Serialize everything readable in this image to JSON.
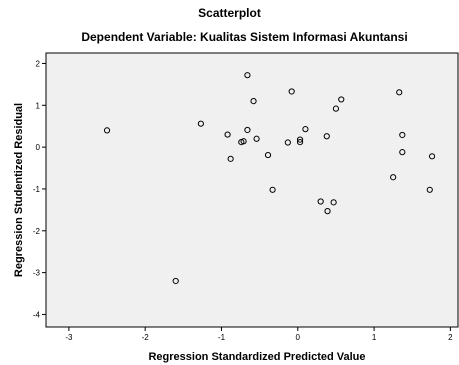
{
  "chart_data": {
    "type": "scatter",
    "title": "Scatterplot",
    "subtitle": "Dependent Variable: Kualitas Sistem Informasi Akuntansi",
    "xlabel": "Regression Standardized Predicted Value",
    "ylabel": "Regression Studentized Residual",
    "xlim": [
      -3.3,
      2.1
    ],
    "ylim": [
      -4.3,
      2.25
    ],
    "xticks": [
      -3,
      -2,
      -1,
      0,
      1,
      2
    ],
    "yticks": [
      2,
      1,
      0,
      -1,
      -2,
      -3,
      -4
    ],
    "grid": false,
    "plot_background": "#f0f0f0",
    "marker_color": "#000000",
    "points": [
      {
        "x": -2.5,
        "y": 0.4
      },
      {
        "x": -1.6,
        "y": -3.2
      },
      {
        "x": -1.27,
        "y": 0.56
      },
      {
        "x": -0.92,
        "y": 0.3
      },
      {
        "x": -0.88,
        "y": -0.28
      },
      {
        "x": -0.74,
        "y": 0.12
      },
      {
        "x": -0.71,
        "y": 0.14
      },
      {
        "x": -0.66,
        "y": 1.72
      },
      {
        "x": -0.66,
        "y": 0.41
      },
      {
        "x": -0.58,
        "y": 1.1
      },
      {
        "x": -0.54,
        "y": 0.2
      },
      {
        "x": -0.39,
        "y": -0.19
      },
      {
        "x": -0.33,
        "y": -1.02
      },
      {
        "x": -0.13,
        "y": 0.11
      },
      {
        "x": -0.08,
        "y": 1.33
      },
      {
        "x": 0.03,
        "y": 0.18
      },
      {
        "x": 0.03,
        "y": 0.12
      },
      {
        "x": 0.1,
        "y": 0.43
      },
      {
        "x": 0.3,
        "y": -1.3
      },
      {
        "x": 0.38,
        "y": 0.26
      },
      {
        "x": 0.39,
        "y": -1.53
      },
      {
        "x": 0.47,
        "y": -1.32
      },
      {
        "x": 0.5,
        "y": 0.92
      },
      {
        "x": 0.57,
        "y": 1.14
      },
      {
        "x": 1.25,
        "y": -0.72
      },
      {
        "x": 1.33,
        "y": 1.31
      },
      {
        "x": 1.37,
        "y": 0.29
      },
      {
        "x": 1.37,
        "y": -0.12
      },
      {
        "x": 1.73,
        "y": -1.02
      },
      {
        "x": 1.76,
        "y": -0.22
      }
    ]
  }
}
